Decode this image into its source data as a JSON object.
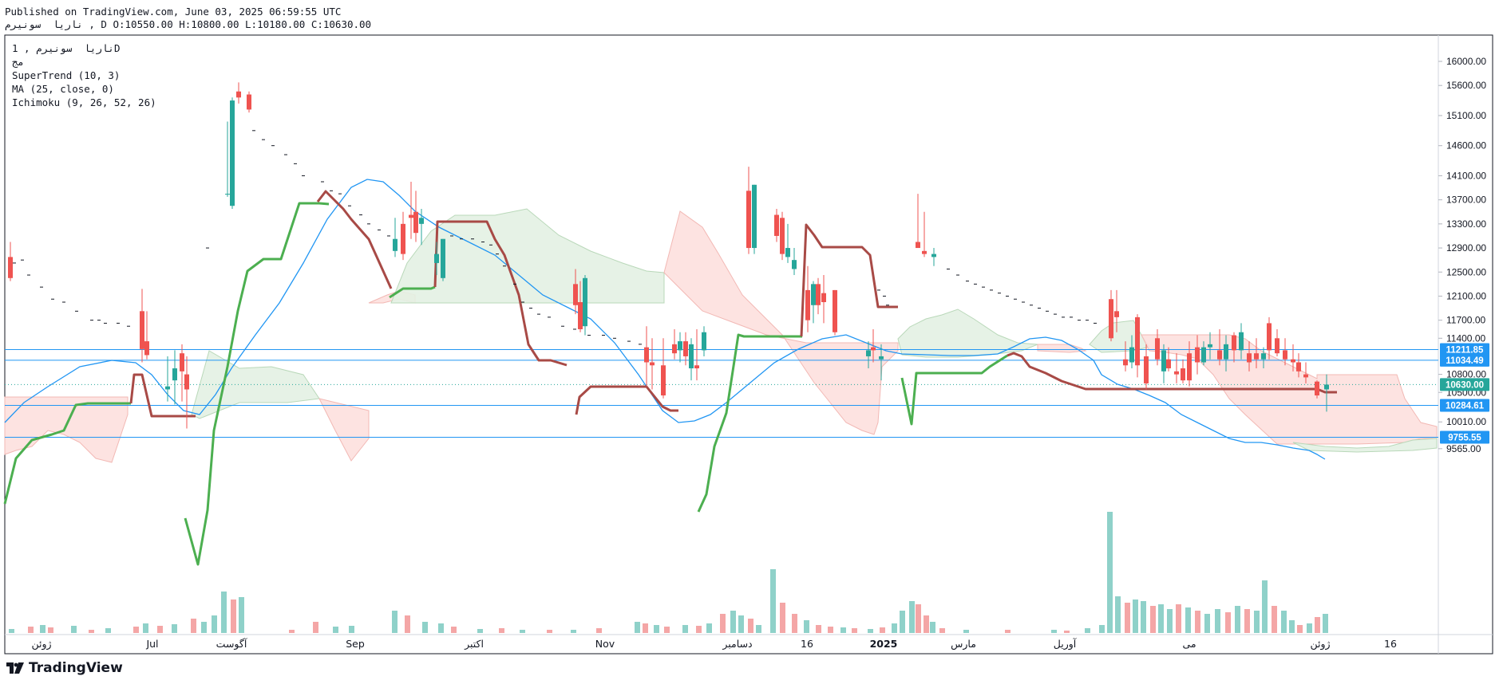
{
  "header": {
    "published_line": "Published on TradingView.com, June 03, 2025 06:59:55 UTC",
    "ohlc_line": "ناریا  سونیرم , D O:10550.00 H:10800.00 L:10180.00 C:10630.00"
  },
  "legend": {
    "symbol": "ناریا  سونیرم , 1D",
    "exchange": "مج",
    "indicators": [
      "SuperTrend (10, 3)",
      "MA (25, close, 0)",
      "Ichimoku (9, 26, 52, 26)"
    ]
  },
  "branding": {
    "name": "TradingView",
    "logo_icon": "tradingview-logo-icon"
  },
  "colors": {
    "up": "#26a69a",
    "down": "#ef5350",
    "volume_up": "#8fd1c9",
    "volume_down": "#f4a6a6",
    "supertrend_up": "#4caf50",
    "supertrend_down": "#a84a46",
    "ma": "#2196f3",
    "hline": "#2196f3",
    "cloud_bull": "#e3f1e3",
    "cloud_bear": "#fde0de",
    "last_price": "#26a69a"
  },
  "chart_data": {
    "type": "candlestick",
    "interval": "1D",
    "y_axis": {
      "ticks": [
        16000,
        15600,
        15100,
        14600,
        14100,
        13700,
        13300,
        12900,
        12500,
        12100,
        11700,
        11400,
        10800,
        10500,
        10010,
        9565
      ],
      "tick_labels": [
        "16000.00",
        "15600.00",
        "15100.00",
        "14600.00",
        "14100.00",
        "13700.00",
        "13300.00",
        "12900.00",
        "12500.00",
        "12100.00",
        "11700.00",
        "11400.00",
        "10800.00",
        "10500.00",
        "10010.00",
        "9565.00"
      ],
      "range": [
        9400,
        16300
      ]
    },
    "x_axis": {
      "labels": [
        "ژوئن",
        "Jul",
        "آگوست",
        "Sep",
        "اکتبر",
        "Nov",
        "دسامبر",
        "16",
        "2025",
        "مارس",
        "آوریل",
        "می",
        "ژوئن",
        "16"
      ]
    },
    "horizontal_lines": [
      11211.85,
      11034.49,
      10284.61,
      9755.55
    ],
    "horizontal_line_labels": [
      "11211.85",
      "11034.49",
      "10284.61",
      "9755.55"
    ],
    "last_price": 10630.0,
    "last_price_label": "10630.00",
    "ohlc": {
      "open": 10550.0,
      "high": 10800.0,
      "low": 10180.0,
      "close": 10630.0
    },
    "legend_position": "top-left",
    "grid": false
  }
}
